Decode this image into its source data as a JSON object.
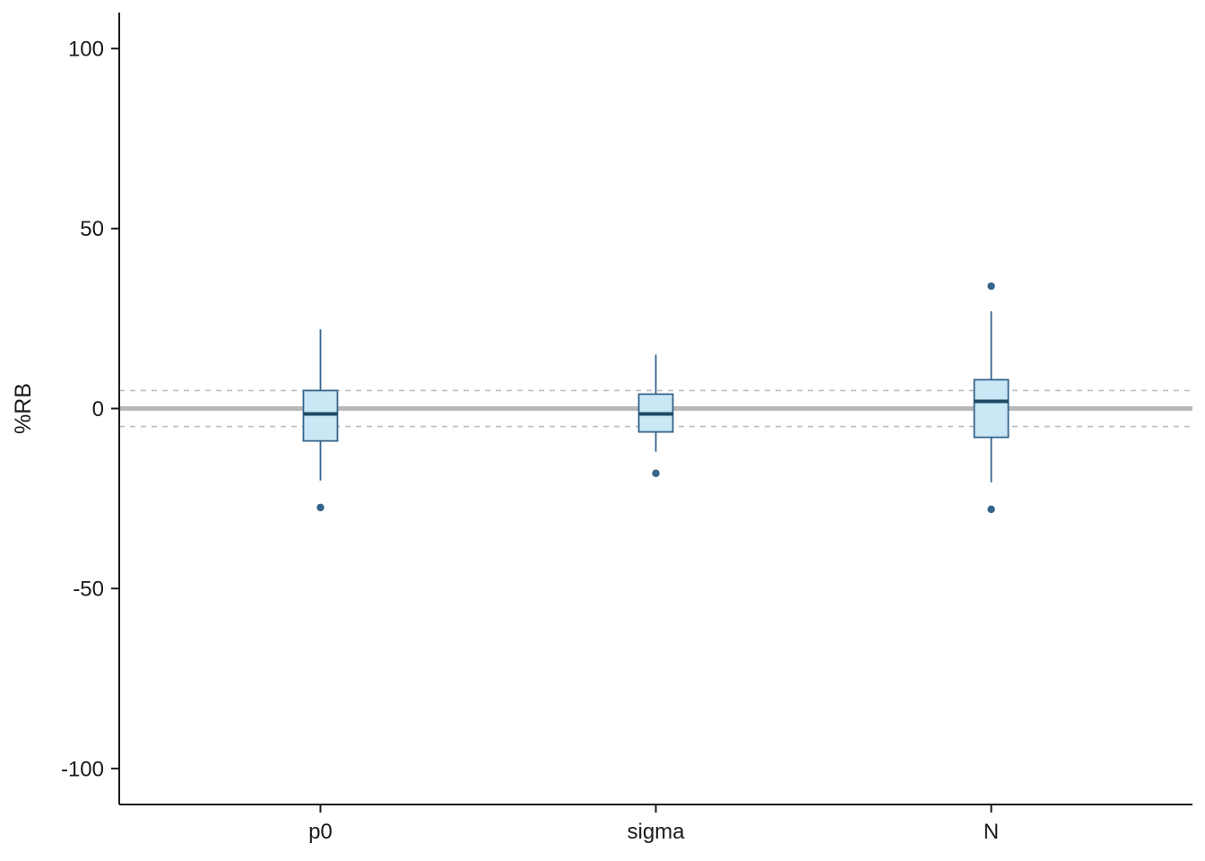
{
  "figure": {
    "background": "#ffffff"
  },
  "chart_data": {
    "type": "boxplot",
    "title": "",
    "xlabel": "",
    "ylabel": "%RB",
    "categories": [
      "p0",
      "sigma",
      "N"
    ],
    "yticks": [
      100,
      50,
      0,
      -50,
      -100
    ],
    "ylim": [
      -110,
      110
    ],
    "grid": false,
    "legend": null,
    "reference_lines": {
      "solid_y": 0,
      "dashed_y": [
        5,
        -5
      ]
    },
    "series": [
      {
        "category": "p0",
        "whisker_low": -20,
        "q1": -9,
        "median": -1.5,
        "q3": 5,
        "whisker_high": 22,
        "outliers": [
          -27.5
        ]
      },
      {
        "category": "sigma",
        "whisker_low": -12,
        "q1": -6.5,
        "median": -1.5,
        "q3": 4,
        "whisker_high": 15,
        "outliers": [
          -18
        ]
      },
      {
        "category": "N",
        "whisker_low": -20.5,
        "q1": -8,
        "median": 2,
        "q3": 8,
        "whisker_high": 27,
        "outliers": [
          34,
          -28
        ]
      }
    ],
    "colors": {
      "box_fill": "#c9e7f4",
      "box_stroke": "#36648b",
      "median_stroke": "#1f4a66",
      "outlier_fill": "#36648b",
      "reference_solid": "#b8b8b8",
      "reference_dashed": "#bdbdbd",
      "axis": "#1a1a1a",
      "tick_label": "#1a1a1a"
    }
  }
}
